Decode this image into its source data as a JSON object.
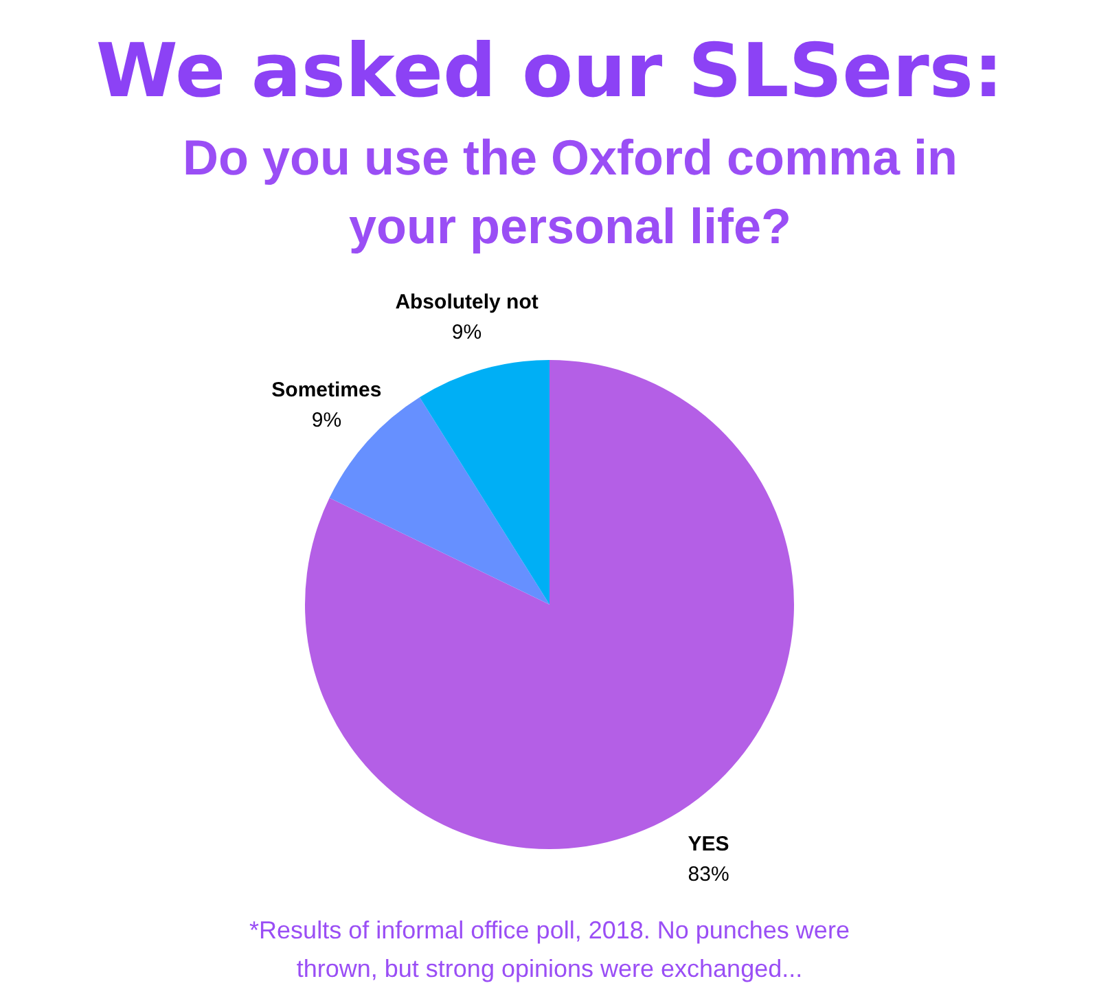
{
  "chart_data": {
    "type": "pie",
    "title": "We asked our SLSers:",
    "subtitle": "Do you use the Oxford comma in your personal life?",
    "categories": [
      "YES",
      "Sometimes",
      "Absolutely not"
    ],
    "values": [
      83,
      9,
      9
    ],
    "value_labels": [
      "83%",
      "9%",
      "9%"
    ],
    "colors": [
      "#b45fe6",
      "#6690ff",
      "#00aff5"
    ],
    "legend": false,
    "annotations": [
      "*Results of informal office poll, 2018. No punches were thrown, but strong opinions were exchanged..."
    ]
  }
}
